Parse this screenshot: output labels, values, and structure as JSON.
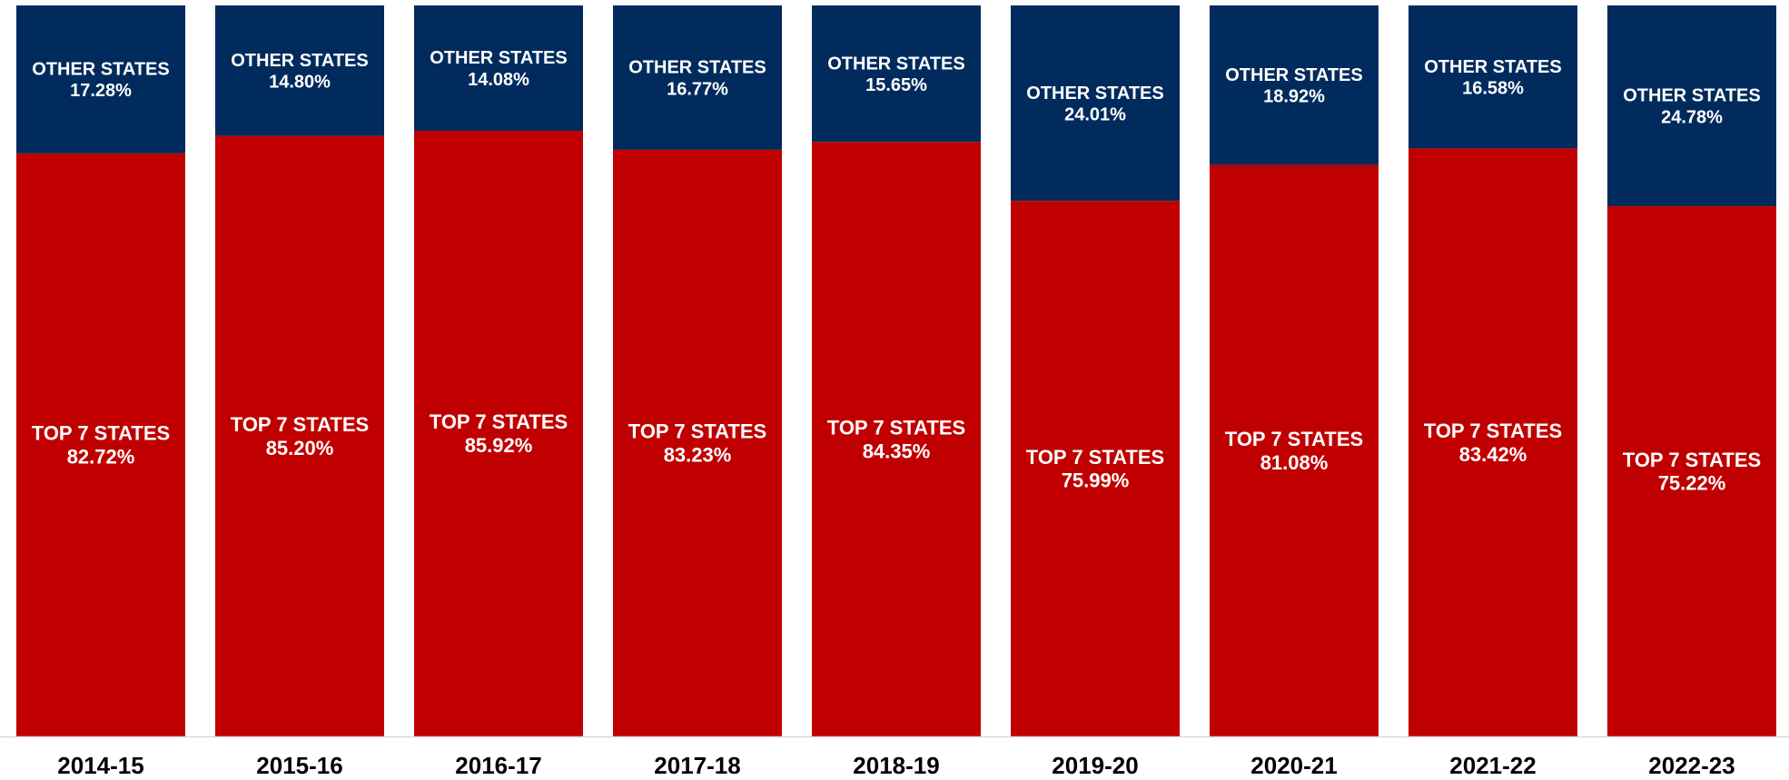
{
  "chart_data": {
    "type": "bar",
    "stacked": true,
    "percent_stacked": true,
    "title": "",
    "xlabel": "",
    "ylabel": "",
    "ylim": [
      0,
      100
    ],
    "grid": false,
    "legend": "none",
    "categories": [
      "2014-15",
      "2015-16",
      "2016-17",
      "2017-18",
      "2018-19",
      "2019-20",
      "2020-21",
      "2021-22",
      "2022-23"
    ],
    "series": [
      {
        "name": "TOP 7 STATES",
        "color": "#c00000",
        "values": [
          82.72,
          85.2,
          85.92,
          83.23,
          84.35,
          75.99,
          81.08,
          83.42,
          75.22
        ],
        "labels": [
          "82.72%",
          "85.20%",
          "85.92%",
          "83.23%",
          "84.35%",
          "75.99%",
          "81.08%",
          "83.42%",
          "75.22%"
        ]
      },
      {
        "name": "OTHER STATES",
        "color": "#002b5c",
        "values": [
          17.28,
          14.8,
          14.08,
          16.77,
          15.65,
          24.01,
          18.92,
          16.58,
          24.78
        ],
        "labels": [
          "17.28%",
          "14.80%",
          "14.08%",
          "16.77%",
          "15.65%",
          "24.01%",
          "18.92%",
          "16.58%",
          "24.78%"
        ]
      }
    ],
    "axis_color": "#d9d9d9"
  }
}
